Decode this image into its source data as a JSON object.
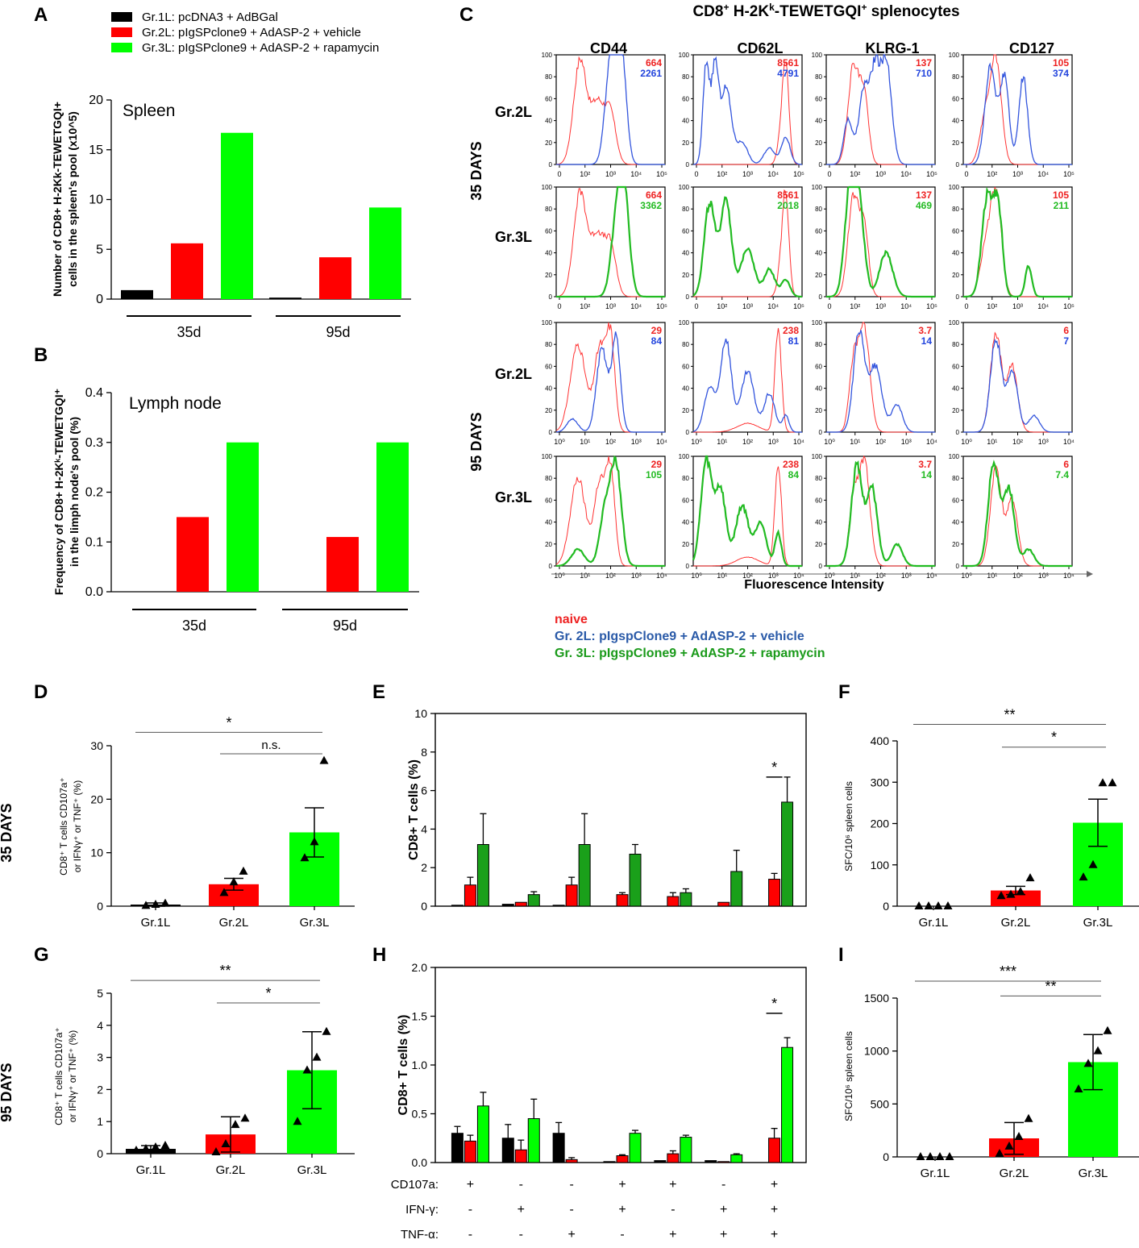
{
  "colors": {
    "black": "#000000",
    "red": "#ff0000",
    "green": "#00ff00",
    "dark_green": "#1aa01a",
    "blue": "#3355dd",
    "naive_red": "#ff3333",
    "blue_text": "#2255aa",
    "green_text": "#1a9a1a"
  },
  "legend_ab": [
    {
      "label": "Gr.1L: pcDNA3 + AdBGal",
      "color": "black"
    },
    {
      "label": "Gr.2L: pIgSPclone9 + AdASP-2 + vehicle",
      "color": "red"
    },
    {
      "label": "Gr.3L: pIgSPclone9 + AdASP-2 + rapamycin",
      "color": "green"
    }
  ],
  "row_labels": {
    "d35": "35 DAYS",
    "d95": "95 DAYS"
  },
  "flow": {
    "panel": "C",
    "title_parts": [
      "CD8",
      "+",
      " H-2K",
      "k",
      "-TEWETGQI",
      "+",
      " splenocytes"
    ],
    "markers": [
      "CD44",
      "CD62L",
      "KLRG-1",
      "CD127"
    ],
    "row_groups": [
      "Gr.2L",
      "Gr.3L",
      "Gr.2L",
      "Gr.3L"
    ],
    "day_labels": [
      "35 DAYS",
      "95 DAYS"
    ],
    "x_axis_label": "Fluorescence Intensity",
    "y_ticks": [
      "0",
      "20",
      "40",
      "60",
      "80",
      "100"
    ],
    "x_ticks_35": [
      "0",
      "10",
      "2",
      "10",
      "3",
      "10",
      "4",
      "10",
      "5"
    ],
    "x_ticks_95": [
      "10",
      "0",
      "10",
      "1",
      "10",
      "2",
      "10",
      "3",
      "10",
      "4"
    ],
    "mfi": [
      [
        [
          "664",
          "2261"
        ],
        [
          "8561",
          "4791"
        ],
        [
          "137",
          "710"
        ],
        [
          "105",
          "374"
        ]
      ],
      [
        [
          "664",
          "3362"
        ],
        [
          "8561",
          "2018"
        ],
        [
          "137",
          "469"
        ],
        [
          "105",
          "211"
        ]
      ],
      [
        [
          "29",
          "84"
        ],
        [
          "238",
          "81"
        ],
        [
          "3.7",
          "14"
        ],
        [
          "6",
          "7"
        ]
      ],
      [
        [
          "29",
          "105"
        ],
        [
          "238",
          "84"
        ],
        [
          "3.7",
          "14"
        ],
        [
          "6",
          "7.4"
        ]
      ]
    ],
    "legend": [
      "naive",
      "Gr. 2L: pIgspClone9 + AdASP-2 + vehicle",
      "Gr. 3L: pIgspClone9 + AdASP-2 + rapamycin"
    ]
  },
  "chart_data": [
    {
      "panel": "A",
      "type": "bar",
      "title": "Spleen",
      "ylabel": "Number of CD8+ H-2Kk-TEWETGQI+ cells in the spleen's pool (x10^5)",
      "ylabel_lines": [
        "Number of CD8+ H-2Kk-TEWETGQI+",
        "cells in the spleen's pool (x10^5)"
      ],
      "ylim": [
        0,
        20
      ],
      "yticks": [
        "0",
        "5",
        "10",
        "15",
        "20"
      ],
      "groups": [
        "35d",
        "95d"
      ],
      "series": [
        {
          "name": "Gr.1L",
          "color": "black",
          "values": [
            0.9,
            0.15
          ]
        },
        {
          "name": "Gr.2L",
          "color": "red",
          "values": [
            5.6,
            4.2
          ]
        },
        {
          "name": "Gr.3L",
          "color": "green",
          "values": [
            16.7,
            9.2
          ]
        }
      ]
    },
    {
      "panel": "B",
      "type": "bar",
      "title": "Lymph node",
      "ylabel": "Frequency of CD8+ H-2Kk-TEWETGQI+ in the limph node's pool (%)",
      "ylabel_lines": [
        "Frequency of CD8+ H-2Kᵏ-TEWETGQI⁺",
        "in the limph node's pool (%)"
      ],
      "ylim": [
        0,
        0.4
      ],
      "yticks": [
        "0.0",
        "0.1",
        "0.2",
        "0.3",
        "0.4"
      ],
      "groups": [
        "35d",
        "95d"
      ],
      "series": [
        {
          "name": "Gr.1L",
          "color": "black",
          "values": [
            0,
            0
          ]
        },
        {
          "name": "Gr.2L",
          "color": "red",
          "values": [
            0.15,
            0.11
          ]
        },
        {
          "name": "Gr.3L",
          "color": "green",
          "values": [
            0.3,
            0.3
          ]
        }
      ]
    },
    {
      "panel": "D",
      "type": "bar",
      "ylabel_lines": [
        "CD8⁺ T cells CD107a⁺",
        "or IFNγ⁺ or TNF⁺ (%)"
      ],
      "ylim": [
        0,
        30
      ],
      "yticks": [
        "0",
        "10",
        "20",
        "30"
      ],
      "categories": [
        "Gr.1L",
        "Gr.2L",
        "Gr.3L"
      ],
      "values": [
        0.3,
        4.1,
        13.8
      ],
      "errors": [
        0.3,
        1.1,
        4.6
      ],
      "colors": [
        "black",
        "red",
        "green"
      ],
      "points": [
        [
          0.1,
          0.3,
          0.5
        ],
        [
          2.5,
          4.5,
          6.5
        ],
        [
          9.0,
          12.0,
          27.2
        ]
      ],
      "sig": [
        {
          "from": 0,
          "to": 2,
          "label": "*",
          "y": 32.5
        },
        {
          "from": 1,
          "to": 2,
          "label": "n.s.",
          "y": 28.5
        }
      ]
    },
    {
      "panel": "E",
      "type": "bar",
      "ylabel": "CD8+ T cells (%)",
      "ylim": [
        0,
        10
      ],
      "yticks": [
        "0",
        "2",
        "4",
        "6",
        "8",
        "10"
      ],
      "series": [
        {
          "name": "Gr.1L",
          "color": "black",
          "values": [
            0.05,
            0.1,
            0.05,
            0,
            0,
            0,
            0
          ],
          "errors": [
            0,
            0,
            0,
            0,
            0,
            0,
            0
          ]
        },
        {
          "name": "Gr.2L",
          "color": "red",
          "values": [
            1.1,
            0.2,
            1.1,
            0.6,
            0.5,
            0.2,
            1.4
          ],
          "errors": [
            0.4,
            0,
            0.4,
            0.1,
            0.2,
            0,
            0.3
          ]
        },
        {
          "name": "Gr.3L",
          "color": "dark_green",
          "values": [
            3.2,
            0.6,
            3.2,
            2.7,
            0.7,
            1.8,
            5.4
          ],
          "errors": [
            1.6,
            0.15,
            1.6,
            0.5,
            0.2,
            1.1,
            1.3
          ]
        }
      ],
      "sig": [
        {
          "index": 6,
          "label": "*",
          "y": 6.7
        }
      ]
    },
    {
      "panel": "F",
      "type": "bar",
      "ylabel": "SFC/10^6 spleen cells",
      "ylabel_lines": [
        "SFC/10⁶ spleen cells"
      ],
      "ylim": [
        0,
        400
      ],
      "yticks": [
        "0",
        "100",
        "200",
        "300",
        "400"
      ],
      "categories": [
        "Gr.1L",
        "Gr.2L",
        "Gr.3L"
      ],
      "values": [
        0,
        38,
        202
      ],
      "errors": [
        0,
        10,
        57
      ],
      "colors": [
        "black",
        "red",
        "green"
      ],
      "points": [
        [
          0,
          0,
          0,
          0
        ],
        [
          25,
          28,
          35,
          68
        ],
        [
          70,
          100,
          298,
          298
        ]
      ],
      "sig": [
        {
          "from": 0,
          "to": 2,
          "label": "**",
          "y": 440
        },
        {
          "from": 1,
          "to": 2,
          "label": "*",
          "y": 385
        }
      ]
    },
    {
      "panel": "G",
      "type": "bar",
      "ylabel_lines": [
        "CD8⁺ T cells CD107a⁺",
        "or IFNγ⁺ or TNF⁺ (%)"
      ],
      "ylim": [
        0,
        5
      ],
      "yticks": [
        "0",
        "1",
        "2",
        "3",
        "4",
        "5"
      ],
      "categories": [
        "Gr.1L",
        "Gr.2L",
        "Gr.3L"
      ],
      "values": [
        0.15,
        0.6,
        2.6
      ],
      "errors": [
        0.1,
        0.55,
        1.2
      ],
      "colors": [
        "black",
        "red",
        "green"
      ],
      "points": [
        [
          0.1,
          0.15,
          0.2,
          0.25
        ],
        [
          0.05,
          0.3,
          0.9,
          1.1
        ],
        [
          1.0,
          2.6,
          3.0,
          3.8
        ]
      ],
      "sig": [
        {
          "from": 0,
          "to": 2,
          "label": "**",
          "y": 5.4
        },
        {
          "from": 1,
          "to": 2,
          "label": "*",
          "y": 4.7
        }
      ]
    },
    {
      "panel": "H",
      "type": "bar",
      "ylabel": "CD8+ T cells (%)",
      "ylim": [
        0,
        2.0
      ],
      "yticks": [
        "0.0",
        "0.5",
        "1.0",
        "1.5",
        "2.0"
      ],
      "series": [
        {
          "name": "Gr.1L",
          "color": "black",
          "values": [
            0.3,
            0.25,
            0.3,
            0.01,
            0.02,
            0.02,
            0
          ],
          "errors": [
            0.07,
            0.14,
            0.11,
            0,
            0,
            0,
            0
          ]
        },
        {
          "name": "Gr.2L",
          "color": "red",
          "values": [
            0.22,
            0.13,
            0.03,
            0.07,
            0.09,
            0.01,
            0.25
          ],
          "errors": [
            0.06,
            0.1,
            0.02,
            0.01,
            0.03,
            0,
            0.1
          ]
        },
        {
          "name": "Gr.3L",
          "color": "green",
          "values": [
            0.58,
            0.45,
            0,
            0.3,
            0.26,
            0.08,
            1.18
          ],
          "errors": [
            0.14,
            0.2,
            0,
            0.03,
            0.02,
            0.01,
            0.1
          ]
        }
      ],
      "sig": [
        {
          "index": 6,
          "label": "*",
          "y": 1.53
        }
      ],
      "table": {
        "rows": [
          "CD107a:",
          "IFN-γ:",
          "TNF-α:"
        ],
        "cells": [
          [
            "+",
            "-",
            "-",
            "+",
            "+",
            "-",
            "+"
          ],
          [
            "-",
            "+",
            "-",
            "+",
            "-",
            "+",
            "+"
          ],
          [
            "-",
            "-",
            "+",
            "-",
            "+",
            "+",
            "+"
          ]
        ]
      }
    },
    {
      "panel": "I",
      "type": "bar",
      "ylabel": "SFC/10^6 spleen cells",
      "ylabel_lines": [
        "SFC/10⁶ spleen cells"
      ],
      "ylim": [
        0,
        1500
      ],
      "yticks": [
        "0",
        "500",
        "1000",
        "1500"
      ],
      "categories": [
        "Gr.1L",
        "Gr.2L",
        "Gr.3L"
      ],
      "values": [
        0,
        175,
        895
      ],
      "errors": [
        0,
        150,
        260
      ],
      "colors": [
        "black",
        "red",
        "green"
      ],
      "points": [
        [
          0,
          0,
          0,
          0
        ],
        [
          30,
          100,
          190,
          360
        ],
        [
          640,
          880,
          1000,
          1190
        ]
      ],
      "sig": [
        {
          "from": 0,
          "to": 2,
          "label": "***",
          "y": 1660
        },
        {
          "from": 1,
          "to": 2,
          "label": "**",
          "y": 1520
        }
      ]
    }
  ]
}
